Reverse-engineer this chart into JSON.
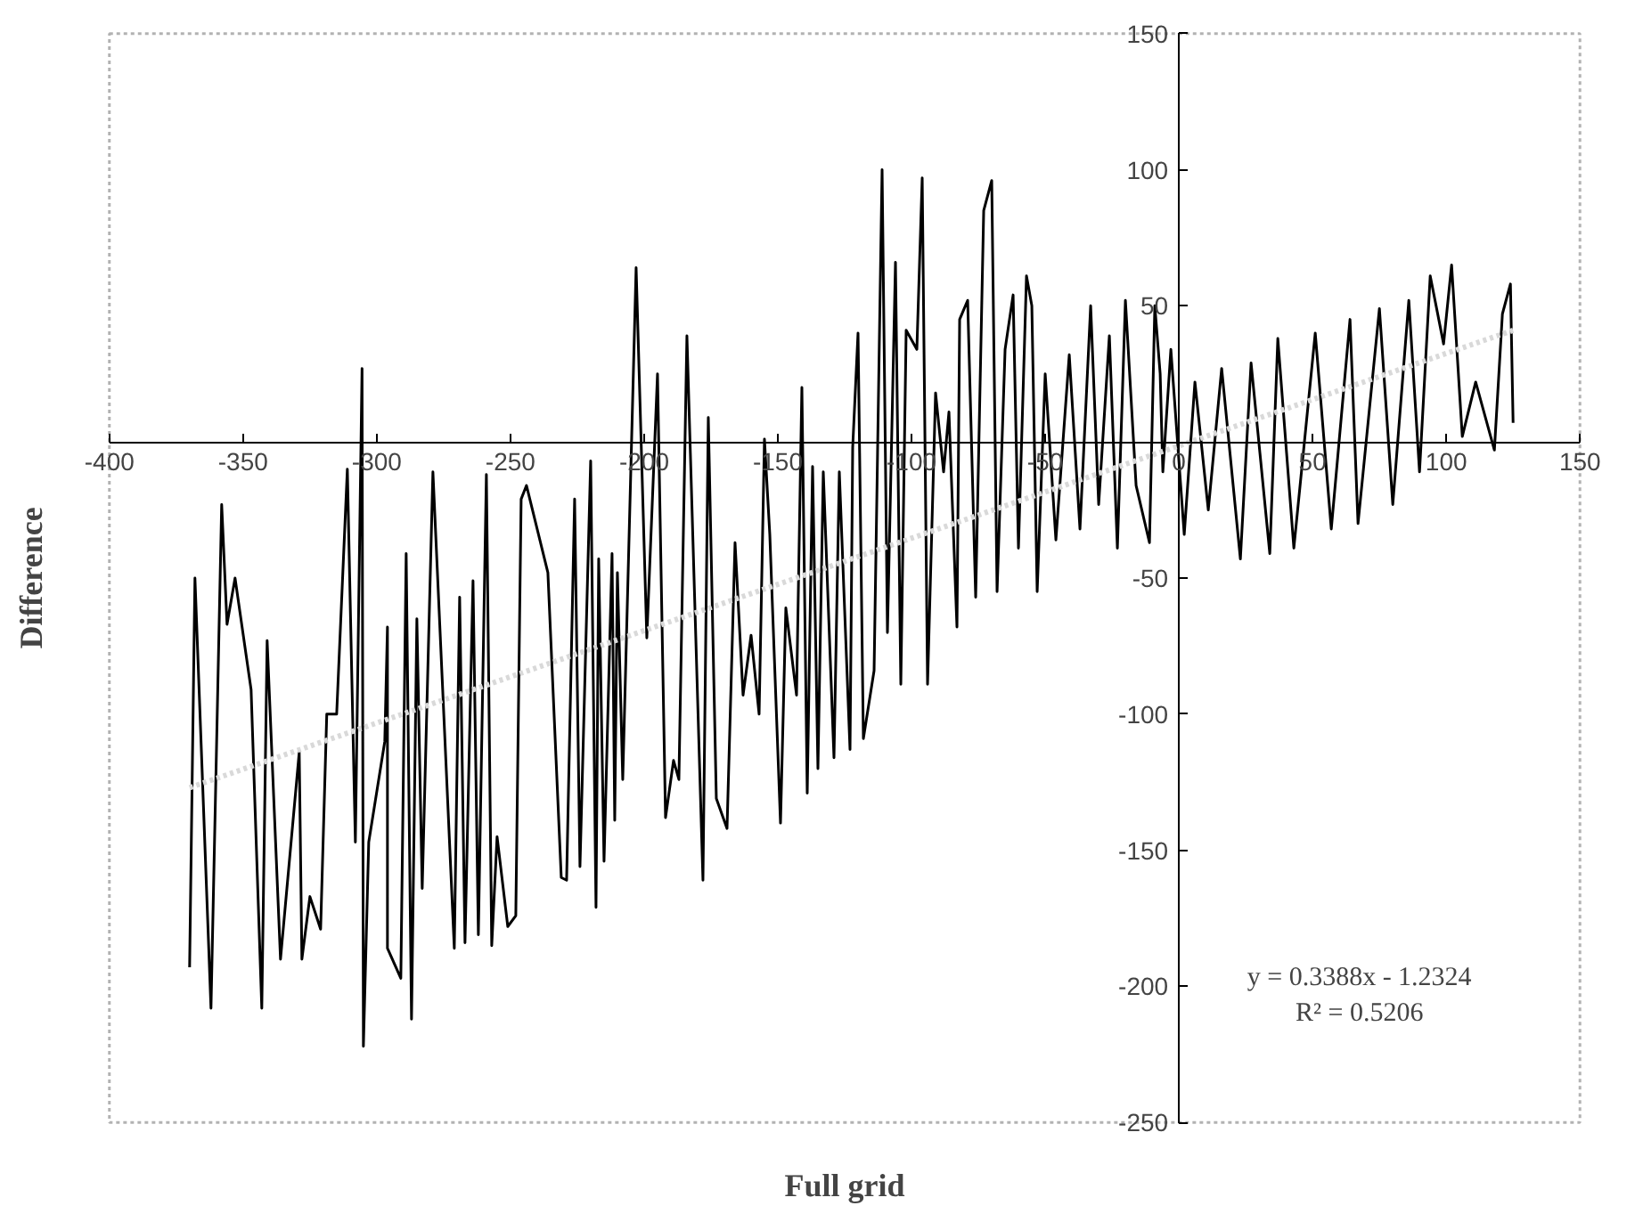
{
  "chart_data": {
    "type": "line",
    "xlabel": "Full grid",
    "ylabel": "Difference",
    "xlim": [
      -400,
      150
    ],
    "ylim": [
      -250,
      150
    ],
    "xticks": [
      -400,
      -350,
      -300,
      -250,
      -200,
      -150,
      -100,
      -50,
      0,
      50,
      100,
      150
    ],
    "yticks": [
      -250,
      -200,
      -150,
      -100,
      -50,
      50,
      100,
      150
    ],
    "grid": false,
    "marker": "none",
    "annotations": [
      "y = 0.3388x - 1.2324",
      "R² = 0.5206"
    ],
    "series": [
      {
        "color": "#000000",
        "line_style": "solid",
        "x": [
          -370,
          -368,
          -362,
          -358,
          -356,
          -353,
          -347,
          -343,
          -341,
          -336,
          -329,
          -328,
          -325,
          -321,
          -318.7,
          -315,
          -311,
          -308,
          -305.5,
          -305,
          -303,
          -297,
          -296,
          -296,
          -291,
          -289,
          -287,
          -285,
          -283,
          -279,
          -271,
          -269,
          -267,
          -264,
          -262,
          -259,
          -257,
          -255,
          -251,
          -248,
          -246,
          -244,
          -236,
          -231,
          -229,
          -226,
          -224,
          -220,
          -218,
          -217,
          -215,
          -212,
          -211,
          -210,
          -208,
          -203,
          -199,
          -195,
          -192,
          -189,
          -187,
          -184,
          -178,
          -176,
          -173,
          -169,
          -166,
          -163,
          -160,
          -157,
          -155,
          -153,
          -149,
          -147,
          -143,
          -141,
          -139,
          -137,
          -135,
          -133,
          -129,
          -127,
          -123,
          -122,
          -120,
          -118,
          -114,
          -111,
          -109,
          -106,
          -104,
          -102,
          -98,
          -96,
          -94,
          -91,
          -88,
          -86,
          -83,
          -82,
          -79,
          -76,
          -73,
          -70,
          -68,
          -65,
          -62,
          -60,
          -57,
          -55,
          -53,
          -50,
          -46,
          -41,
          -37,
          -33,
          -30,
          -26,
          -23,
          -20,
          -16,
          -11,
          -9,
          -7,
          -6,
          -3,
          2,
          6,
          11,
          16,
          23,
          27,
          34,
          37,
          43,
          51,
          57,
          64,
          67,
          75,
          80,
          86,
          90,
          94,
          99,
          102,
          106,
          111,
          118,
          121,
          124,
          125
        ],
        "values": [
          -193,
          -50,
          -208,
          -23,
          -67,
          -50,
          -91,
          -208,
          -73,
          -190,
          -114,
          -190,
          -167,
          -179,
          -100,
          -100,
          -10,
          -147,
          27,
          -222,
          -147,
          -110,
          -68,
          -186,
          -197,
          -41,
          -212,
          -65,
          -164,
          -11,
          -186,
          -57,
          -184,
          -51,
          -181,
          -12,
          -185,
          -145,
          -178,
          -174,
          -21,
          -16,
          -48,
          -160,
          -161,
          -21,
          -156,
          -7,
          -171,
          -43,
          -154,
          -41,
          -139,
          -48,
          -124,
          64,
          -72,
          25,
          -138,
          -117,
          -124,
          39,
          -161,
          9,
          -131,
          -142,
          -37,
          -93,
          -71,
          -100,
          1,
          -34,
          -140,
          -61,
          -93,
          20,
          -129,
          -9,
          -120,
          -11,
          -116,
          -11,
          -113,
          -2,
          40,
          -109,
          -84,
          100,
          -70,
          66,
          -89,
          41,
          34,
          97,
          -89,
          18,
          -11,
          11,
          -68,
          45,
          52,
          -57,
          85,
          96,
          -55,
          34,
          54,
          -39,
          61,
          50,
          -55,
          25,
          -36,
          32,
          -32,
          50,
          -23,
          39,
          -39,
          52,
          -16,
          -37,
          50,
          25,
          -11,
          34,
          -34,
          22,
          -25,
          27,
          -43,
          29,
          -41,
          38,
          -39,
          40,
          -32,
          45,
          -30,
          49,
          -23,
          52,
          -11,
          61,
          36,
          65,
          2,
          22,
          -3,
          47,
          58,
          7
        ]
      },
      {
        "type": "line",
        "color": "#d9d9d9",
        "line_style": "dotted",
        "x": [
          -370,
          125
        ],
        "values": [
          -127,
          41
        ]
      }
    ]
  }
}
